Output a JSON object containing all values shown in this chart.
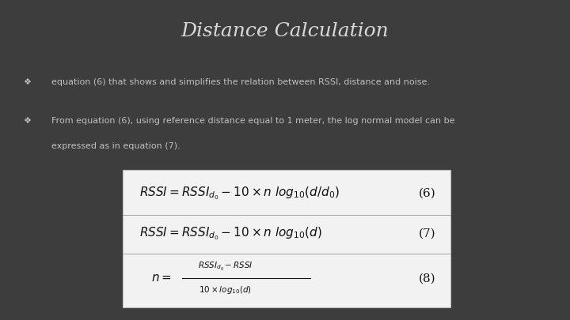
{
  "title": "Distance Calculation",
  "title_fontsize": 18,
  "title_color": "#d8d8d8",
  "background_color": "#3d3d3d",
  "bullet_color": "#c0c0c0",
  "bullet_symbol": "❖",
  "bullet1": "equation (6) that shows and simplifies the relation between RSSI, distance and noise.",
  "bullet2_line1": "From equation (6), using reference distance equal to 1 meter, the log normal model can be",
  "bullet2_line2": "expressed as in equation (7).",
  "box_bg": "#f2f2f2",
  "box_edge": "#bbbbbb",
  "eq6": "$RSSI = RSSI_{d_0} - 10 \\times n\\ log_{10}(d/d_0)$",
  "eq6_label": "(6)",
  "eq7": "$RSSI = RSSI_{d_0} - 10 \\times n\\ log_{10}(d)$",
  "eq7_label": "(7)",
  "eq8_num": "$RSSI_{d_0}-RSSI$",
  "eq8_den": "$10 \\times log_{10}(d)$",
  "eq8_lhs": "$n =$",
  "eq8_label": "(8)",
  "eq_fontsize": 11,
  "eq_label_fontsize": 11,
  "text_color": "#111111"
}
